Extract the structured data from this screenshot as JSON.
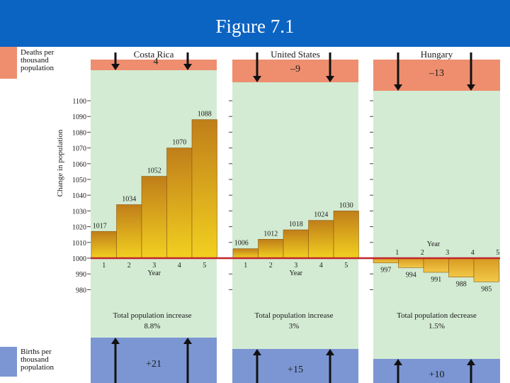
{
  "slide_title": "Figure 7.1",
  "legend": {
    "deaths_label": "Deaths per thousand population",
    "births_label": "Births per thousand population",
    "deaths_color": "#ee8e6e",
    "births_color": "#7b96d2",
    "panel_bg_color": "#d3ebd3"
  },
  "colors": {
    "bar_top": "#c07e1a",
    "bar_bottom": "#f2d020",
    "baseline": "#c0262e",
    "neg_bar": "#d79a20"
  },
  "chart_data": {
    "type": "bar",
    "ylabel": "Change in population",
    "xlabel": "Year",
    "y_ticks": [
      980,
      990,
      1000,
      1010,
      1020,
      1030,
      1040,
      1050,
      1060,
      1070,
      1080,
      1090,
      1100
    ],
    "categories": [
      "1",
      "2",
      "3",
      "4",
      "5"
    ],
    "baseline": 1000,
    "panels": [
      {
        "name": "Costa Rica",
        "values": [
          1017,
          1034,
          1052,
          1070,
          1088
        ],
        "value_labels": [
          "1017",
          "1034",
          "1052",
          "1070",
          "1088"
        ],
        "deaths": "4",
        "births": "+21",
        "summary_line1": "Total population increase",
        "summary_line2": "8.8%"
      },
      {
        "name": "United States",
        "values": [
          1006,
          1012,
          1018,
          1024,
          1030
        ],
        "value_labels": [
          "1006",
          "1012",
          "1018",
          "1024",
          "1030"
        ],
        "deaths": "–9",
        "births": "+15",
        "summary_line1": "Total population increase",
        "summary_line2": "3%"
      },
      {
        "name": "Hungary",
        "values": [
          997,
          994,
          991,
          988,
          985
        ],
        "value_labels": [
          "997",
          "994",
          "991",
          "988",
          "985"
        ],
        "deaths": "–13",
        "births": "+10",
        "summary_line1": "Total population decrease",
        "summary_line2": "1.5%"
      }
    ]
  }
}
